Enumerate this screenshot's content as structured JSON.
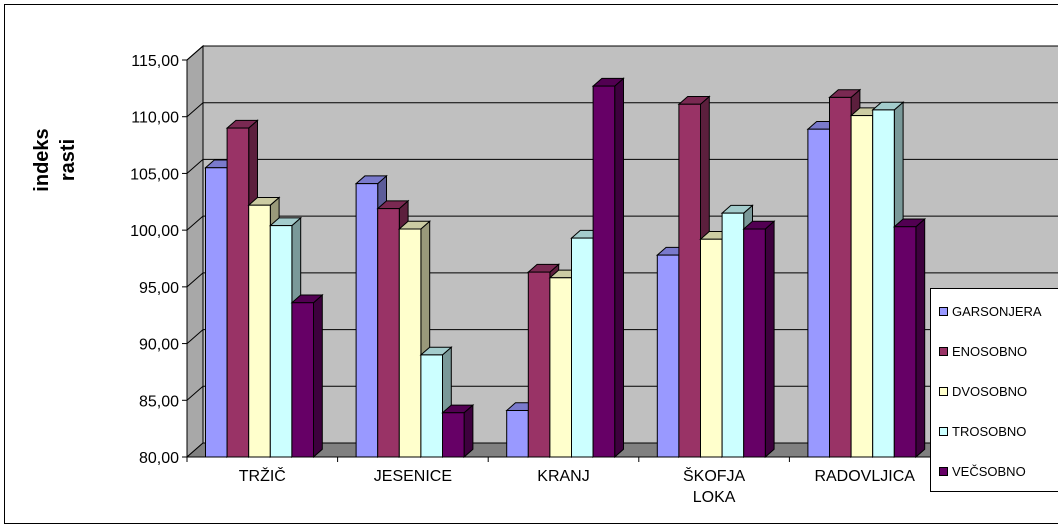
{
  "chart_data": {
    "type": "bar",
    "ylabel": "indeks rasti",
    "ylabel_lines": [
      "indeks",
      "rasti"
    ],
    "ylim": [
      80,
      115
    ],
    "ytick_labels": [
      "80,00",
      "85,00",
      "90,00",
      "95,00",
      "100,00",
      "105,00",
      "110,00",
      "115,00"
    ],
    "yticks": [
      80,
      85,
      90,
      95,
      100,
      105,
      110,
      115
    ],
    "categories": [
      "TRŽIČ",
      "JESENICE",
      "KRANJ",
      "ŠKOFJA LOKA",
      "RADOVLJICA"
    ],
    "category_lines": [
      [
        "TRŽIČ"
      ],
      [
        "JESENICE"
      ],
      [
        "KRANJ"
      ],
      [
        "ŠKOFJA",
        "LOKA"
      ],
      [
        "RADOVLJICA"
      ]
    ],
    "grid": true,
    "legend_position": "right",
    "series": [
      {
        "name": "GARSONJERA",
        "color": "#9999ff",
        "values": [
          105.5,
          104.1,
          84.1,
          97.8,
          108.9
        ]
      },
      {
        "name": "ENOSOBNO",
        "color": "#993366",
        "values": [
          109.0,
          101.9,
          96.3,
          111.1,
          111.7
        ]
      },
      {
        "name": "DVOSOBNO",
        "color": "#ffffcc",
        "values": [
          102.2,
          100.1,
          95.8,
          99.2,
          110.1
        ]
      },
      {
        "name": "TROSOBNO",
        "color": "#ccffff",
        "values": [
          100.4,
          89.0,
          99.3,
          101.5,
          110.6
        ]
      },
      {
        "name": "VEČSOBNO",
        "color": "#660066",
        "values": [
          93.6,
          83.9,
          112.7,
          100.1,
          100.3
        ]
      }
    ]
  }
}
